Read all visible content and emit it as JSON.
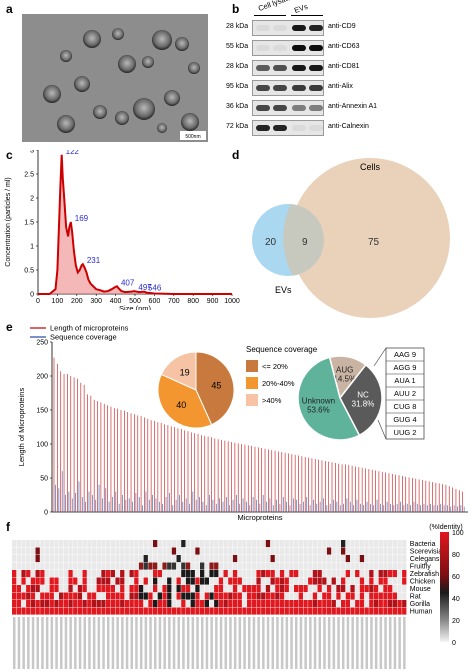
{
  "panels": {
    "a": "a",
    "b": "b",
    "c": "c",
    "d": "d",
    "e": "e",
    "f": "f"
  },
  "em": {
    "scale_label": "500nm"
  },
  "western": {
    "col_labels": [
      "Cell lysate",
      "EVs"
    ],
    "rows": [
      {
        "kda": "28 kDa",
        "antibody": "anti-CD9",
        "bands": [
          0.05,
          0.05,
          0.9,
          0.85
        ]
      },
      {
        "kda": "55 kDa",
        "antibody": "anti-CD63",
        "bands": [
          0.05,
          0.05,
          0.95,
          0.95
        ]
      },
      {
        "kda": "28 kDa",
        "antibody": "anti-CD81",
        "bands": [
          0.6,
          0.65,
          0.9,
          0.9
        ]
      },
      {
        "kda": "95 kDa",
        "antibody": "anti-Alix",
        "bands": [
          0.7,
          0.7,
          0.75,
          0.75
        ]
      },
      {
        "kda": "36 kDa",
        "antibody": "anti-Annexin A1",
        "bands": [
          0.7,
          0.7,
          0.45,
          0.45
        ]
      },
      {
        "kda": "72 kDa",
        "antibody": "anti-Calnexin",
        "bands": [
          0.85,
          0.85,
          0.05,
          0.05
        ]
      }
    ]
  },
  "chart_data": [
    {
      "type": "line",
      "ylabel": "Concentration (particles / ml)",
      "xlabel": "Size (nm)",
      "xlim": [
        0,
        1000
      ],
      "ylim": [
        0,
        3
      ],
      "x_ticks": [
        "0",
        "100",
        "200",
        "300",
        "400",
        "500",
        "600",
        "700",
        "800",
        "900",
        "1000"
      ],
      "y_ticks": [
        "0",
        "0.5",
        "1",
        "1.5",
        "2",
        "2.5",
        "3"
      ],
      "x": [
        0,
        60,
        90,
        100,
        110,
        115,
        122,
        128,
        135,
        145,
        155,
        162,
        169,
        176,
        185,
        195,
        205,
        215,
        225,
        231,
        240,
        250,
        260,
        270,
        280,
        300,
        320,
        340,
        360,
        380,
        400,
        407,
        415,
        430,
        450,
        480,
        497,
        520,
        546,
        560,
        600,
        700,
        800,
        900,
        1000
      ],
      "y": [
        0,
        0,
        0.1,
        0.5,
        1.6,
        2.2,
        2.9,
        2.4,
        2.0,
        1.4,
        1.2,
        1.4,
        1.5,
        1.3,
        0.9,
        0.6,
        0.45,
        0.5,
        0.6,
        0.62,
        0.55,
        0.45,
        0.3,
        0.22,
        0.18,
        0.1,
        0.08,
        0.05,
        0.06,
        0.1,
        0.15,
        0.16,
        0.12,
        0.06,
        0.04,
        0.05,
        0.06,
        0.04,
        0.05,
        0.03,
        0.01,
        0,
        0,
        0,
        0
      ],
      "peak_labels": [
        "122",
        "169",
        "231",
        "407",
        "497",
        "546"
      ],
      "peak_x": [
        122,
        169,
        231,
        407,
        497,
        546
      ],
      "peak_y": [
        2.9,
        1.5,
        0.62,
        0.16,
        0.06,
        0.05
      ]
    },
    {
      "type": "bar",
      "legend": [
        "Length of microproteins",
        "Sequence coverage"
      ],
      "ylabel": "Length of Microproteins",
      "xlabel": "Microproteins",
      "ylim": [
        0,
        250
      ],
      "y_ticks": [
        "0",
        "50",
        "100",
        "150",
        "200",
        "250"
      ],
      "lengths": [
        227,
        218,
        207,
        203,
        203,
        200,
        198,
        196,
        190,
        187,
        173,
        171,
        165,
        163,
        161,
        159,
        157,
        155,
        153,
        152,
        150,
        149,
        147,
        145,
        144,
        142,
        141,
        139,
        137,
        135,
        134,
        132,
        131,
        129,
        128,
        126,
        125,
        123,
        122,
        120,
        119,
        117,
        116,
        115,
        113,
        112,
        111,
        110,
        108,
        107,
        106,
        105,
        104,
        103,
        102,
        101,
        100,
        99,
        98,
        97,
        96,
        95,
        94,
        93,
        92,
        91,
        90,
        89,
        88,
        87,
        86,
        85,
        84,
        83,
        82,
        81,
        80,
        79,
        78,
        77,
        76,
        75,
        74,
        73,
        72,
        71,
        70,
        70,
        69,
        68,
        67,
        66,
        65,
        64,
        63,
        62,
        61,
        60,
        59,
        58,
        57,
        56,
        55,
        54,
        53,
        52,
        51,
        50,
        49,
        48,
        47,
        46,
        45,
        44,
        43,
        42,
        41,
        40,
        38,
        36,
        34,
        32,
        30
      ],
      "coverage": [
        40,
        35,
        60,
        25,
        30,
        20,
        28,
        45,
        22,
        15,
        30,
        25,
        18,
        40,
        20,
        35,
        15,
        22,
        30,
        12,
        25,
        18,
        20,
        15,
        28,
        22,
        10,
        30,
        18,
        25,
        20,
        15,
        12,
        22,
        28,
        10,
        18,
        25,
        15,
        20,
        12,
        30,
        18,
        22,
        15,
        10,
        25,
        18,
        12,
        20,
        15,
        22,
        10,
        18,
        25,
        12,
        20,
        15,
        10,
        22,
        18,
        12,
        25,
        15,
        20,
        10,
        18,
        12,
        22,
        15,
        10,
        20,
        18,
        12,
        15,
        22,
        10,
        18,
        12,
        15,
        20,
        10,
        12,
        18,
        15,
        10,
        12,
        20,
        15,
        10,
        18,
        12,
        10,
        15,
        12,
        10,
        18,
        12,
        10,
        15,
        12,
        10,
        12,
        15,
        10,
        12,
        10,
        15,
        12,
        10,
        12,
        10,
        12,
        10,
        10,
        12,
        10,
        10,
        8,
        10,
        8,
        10,
        8
      ]
    },
    {
      "type": "pie",
      "title": "Sequence coverage",
      "categories": [
        "<= 20%",
        "20%-40%",
        ">40%"
      ],
      "values": [
        45,
        40,
        19
      ],
      "colors": [
        "#c8793d",
        "#f3962f",
        "#f6c4a5"
      ]
    },
    {
      "type": "pie",
      "categories": [
        "AUG",
        "NC",
        "Unknown"
      ],
      "labels": [
        "AUG\n14.5%",
        "NC\n31.8%",
        "Unknown\n53.6%"
      ],
      "values": [
        14.5,
        31.8,
        53.6
      ],
      "colors": [
        "#c9b3a3",
        "#5a5a5a",
        "#5fb39b"
      ],
      "nc_breakdown": [
        "AAG 9",
        "AGG 9",
        "AUA 1",
        "AUU 2",
        "CUG 8",
        "GUG 4",
        "UUG 2"
      ]
    },
    {
      "type": "heatmap",
      "rows": [
        "Bacteria",
        "Scerevisiae",
        "Celegans",
        "Fruitfly",
        "Zebrafish",
        "Chicken",
        "Mouse",
        "Rat",
        "Gorilla",
        "Human"
      ],
      "colorbar_title": "(%Identity)",
      "colorbar_ticks": [
        "100",
        "80",
        "60",
        "40",
        "20",
        "0"
      ],
      "n_cols": 84
    }
  ],
  "venn": {
    "left_label": "EVs",
    "right_label": "Cells",
    "left_only": "20",
    "overlap": "9",
    "right_only": "75"
  }
}
